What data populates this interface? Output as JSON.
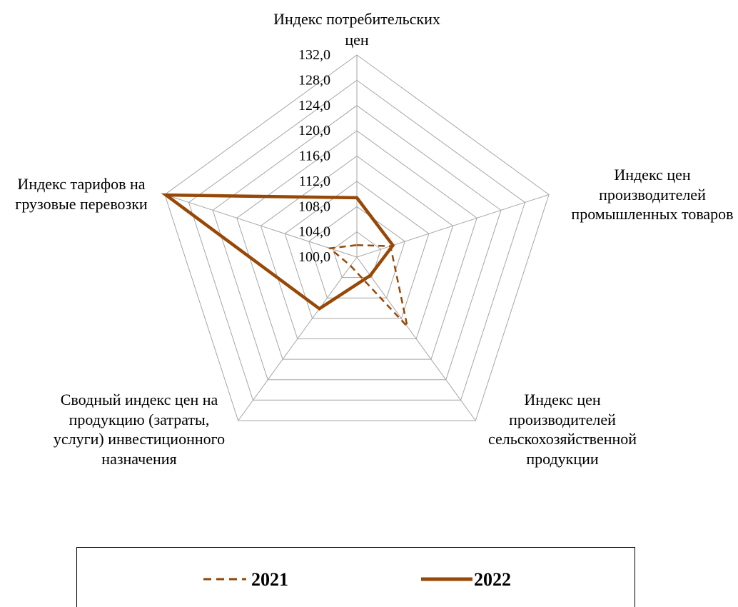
{
  "chart_data": {
    "type": "radar",
    "categories": [
      "Индекс потребительских\nцен",
      "Индекс цен\nпроизводителей\nпромышленных товаров",
      "Индекс цен\nпроизводителей\nсельскохозяйственной\nпродукции",
      "Сводный индекс цен на\nпродукцию (затраты,\nуслуги) инвестиционного\nназначения",
      "Индекс тарифов на\nгрузовые перевозки"
    ],
    "series": [
      {
        "name": "2021",
        "values": [
          101.9,
          105.6,
          113.6,
          101.7,
          104.5
        ],
        "line_style": "dashed",
        "color": "#974806"
      },
      {
        "name": "2022",
        "values": [
          109.4,
          106.0,
          103.6,
          110.1,
          131.8
        ],
        "line_style": "solid",
        "color": "#974806"
      }
    ],
    "rlim": [
      100,
      132
    ],
    "ticks": [
      100,
      104,
      108,
      112,
      116,
      120,
      124,
      128,
      132
    ],
    "tick_labels": [
      "100,0",
      "104,0",
      "108,0",
      "112,0",
      "116,0",
      "120,0",
      "124,0",
      "128,0",
      "132,0"
    ],
    "grid": true,
    "grid_color": "#A6A6A6",
    "legend_position": "bottom"
  }
}
